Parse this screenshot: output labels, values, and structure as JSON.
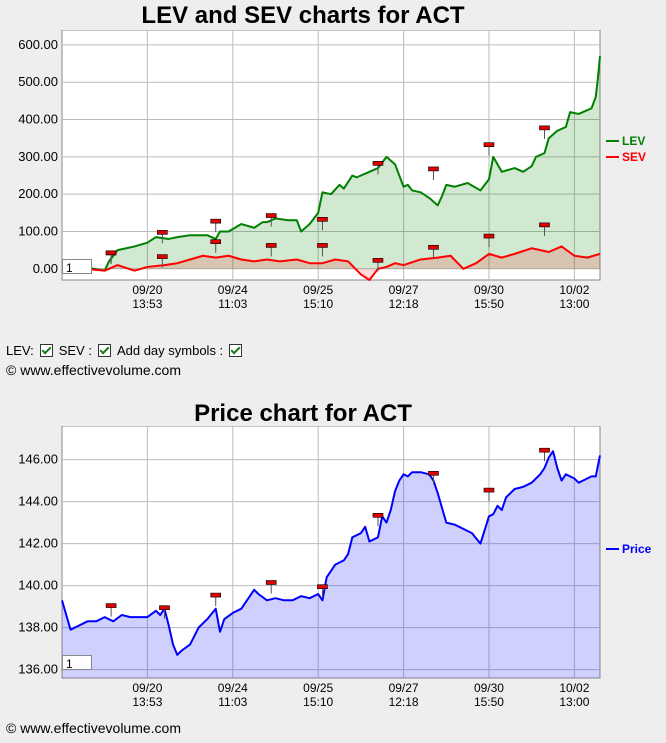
{
  "chart1": {
    "title": "LEV and SEV charts for ACT",
    "controls": {
      "lev": "LEV:",
      "sev": "SEV :",
      "daysym": "Add day symbols :"
    },
    "copyright": "© www.effectivevolume.com",
    "zoom_value": "1"
  },
  "chart2": {
    "title": "Price chart for ACT",
    "copyright": "© www.effectivevolume.com",
    "zoom_value": "1"
  },
  "chart_data": [
    {
      "type": "area",
      "title": "LEV and SEV charts for ACT",
      "ylim": [
        -30,
        640
      ],
      "yticks": [
        "0.00",
        "100.00",
        "200.00",
        "300.00",
        "400.00",
        "500.00",
        "600.00"
      ],
      "xticks": [
        {
          "d": "09/20",
          "t": "13:53",
          "x": 20
        },
        {
          "d": "09/24",
          "t": "11:03",
          "x": 40
        },
        {
          "d": "09/25",
          "t": "15:10",
          "x": 60
        },
        {
          "d": "09/27",
          "t": "12:18",
          "x": 80
        },
        {
          "d": "09/30",
          "t": "15:50",
          "x": 100
        },
        {
          "d": "10/02",
          "t": "13:00",
          "x": 120
        }
      ],
      "xlim": [
        0,
        126
      ],
      "series": [
        {
          "name": "LEV",
          "color": "#008000",
          "x": [
            0,
            5,
            10,
            11,
            13,
            17,
            20,
            22,
            25,
            27,
            30,
            34,
            36,
            37,
            39,
            42,
            45,
            47,
            48,
            50,
            53,
            55,
            56,
            58,
            60,
            61,
            63,
            65,
            66,
            68,
            69,
            72,
            74,
            76,
            77,
            78,
            80,
            81,
            82,
            84,
            86,
            88,
            89,
            90,
            92,
            95,
            98,
            100,
            101,
            103,
            106,
            108,
            110,
            111,
            113,
            114,
            116,
            118,
            119,
            121,
            122,
            124,
            125,
            125.5,
            126
          ],
          "y": [
            5,
            5,
            -5,
            20,
            50,
            60,
            70,
            85,
            80,
            85,
            90,
            90,
            80,
            100,
            100,
            120,
            110,
            125,
            125,
            135,
            130,
            130,
            100,
            120,
            150,
            205,
            200,
            225,
            215,
            250,
            245,
            260,
            270,
            300,
            290,
            280,
            220,
            225,
            210,
            205,
            190,
            170,
            195,
            225,
            220,
            230,
            210,
            240,
            300,
            260,
            270,
            260,
            275,
            300,
            310,
            350,
            370,
            380,
            420,
            415,
            420,
            430,
            460,
            510,
            570
          ]
        },
        {
          "name": "SEV",
          "color": "#ff0000",
          "x": [
            0,
            5,
            10,
            13,
            17,
            20,
            24,
            27,
            30,
            33,
            36,
            39,
            42,
            45,
            48,
            51,
            55,
            58,
            61,
            64,
            67,
            70,
            72,
            74,
            76,
            78,
            80,
            84,
            88,
            91,
            94,
            97,
            100,
            103,
            106,
            110,
            114,
            117,
            120,
            123,
            126
          ],
          "y": [
            0,
            0,
            -5,
            10,
            -5,
            5,
            10,
            15,
            25,
            35,
            30,
            35,
            25,
            20,
            25,
            20,
            25,
            15,
            15,
            25,
            20,
            -15,
            -30,
            0,
            5,
            15,
            10,
            25,
            30,
            35,
            0,
            15,
            40,
            30,
            40,
            55,
            45,
            60,
            35,
            30,
            40
          ]
        }
      ],
      "day_markers": [
        {
          "x": 11.5,
          "series": "SEV",
          "lev": 40,
          "sev": 40
        },
        {
          "x": 23.5,
          "lev": 95,
          "sev": 30
        },
        {
          "x": 36,
          "lev": 125,
          "sev": 70
        },
        {
          "x": 49,
          "lev": 140,
          "sev": 60
        },
        {
          "x": 61,
          "lev": 130,
          "sev": 60
        },
        {
          "x": 74,
          "lev": 280,
          "sev": 20
        },
        {
          "x": 87,
          "lev": 265,
          "sev": 55
        },
        {
          "x": 100,
          "lev": 330,
          "sev": 85
        },
        {
          "x": 113,
          "lev": 375,
          "sev": 115
        }
      ]
    },
    {
      "type": "area",
      "title": "Price chart for ACT",
      "ylim": [
        135.6,
        147.6
      ],
      "yticks": [
        "136.00",
        "138.00",
        "140.00",
        "142.00",
        "144.00",
        "146.00"
      ],
      "xticks": [
        {
          "d": "09/20",
          "t": "13:53",
          "x": 20
        },
        {
          "d": "09/24",
          "t": "11:03",
          "x": 40
        },
        {
          "d": "09/25",
          "t": "15:10",
          "x": 60
        },
        {
          "d": "09/27",
          "t": "12:18",
          "x": 80
        },
        {
          "d": "09/30",
          "t": "15:50",
          "x": 100
        },
        {
          "d": "10/02",
          "t": "13:00",
          "x": 120
        }
      ],
      "xlim": [
        0,
        126
      ],
      "series": [
        {
          "name": "Price",
          "color": "#0000ff",
          "x": [
            0,
            1,
            2,
            4,
            6,
            8,
            10,
            12,
            14,
            16,
            18,
            20,
            22,
            23,
            24,
            25,
            26,
            27,
            28,
            30,
            32,
            34,
            36,
            37,
            38,
            40,
            42,
            44,
            45,
            46,
            48,
            50,
            52,
            54,
            56,
            58,
            60,
            61,
            62,
            63,
            64,
            66,
            67,
            68,
            70,
            71,
            72,
            74,
            75,
            76,
            77,
            78,
            79,
            80,
            81,
            82,
            84,
            86,
            87,
            88,
            89,
            90,
            92,
            94,
            96,
            98,
            100,
            101,
            102,
            103,
            104,
            106,
            108,
            110,
            111,
            112,
            113,
            114,
            115,
            116,
            117,
            118,
            119,
            120,
            121,
            122,
            124,
            125,
            126
          ],
          "y": [
            139.3,
            138.6,
            137.9,
            138.1,
            138.3,
            138.3,
            138.5,
            138.3,
            138.6,
            138.5,
            138.5,
            138.5,
            138.8,
            138.6,
            138.9,
            138.1,
            137.2,
            136.7,
            136.9,
            137.2,
            138.0,
            138.4,
            138.9,
            137.8,
            138.4,
            138.7,
            138.9,
            139.5,
            139.8,
            139.6,
            139.3,
            139.4,
            139.3,
            139.3,
            139.5,
            139.4,
            139.6,
            139.3,
            140.4,
            140.7,
            141.0,
            141.2,
            141.5,
            142.3,
            142.5,
            142.8,
            142.1,
            142.3,
            143.3,
            143.0,
            143.6,
            144.5,
            145.0,
            145.3,
            145.2,
            145.4,
            145.4,
            145.3,
            145.0,
            144.4,
            143.7,
            143.0,
            142.9,
            142.7,
            142.5,
            142.0,
            143.3,
            143.4,
            143.8,
            143.6,
            144.2,
            144.6,
            144.7,
            144.9,
            145.1,
            145.3,
            145.6,
            146.1,
            146.4,
            145.6,
            145.0,
            145.3,
            145.2,
            145.1,
            144.9,
            145.0,
            145.2,
            145.2,
            146.2
          ]
        }
      ],
      "day_markers": [
        {
          "x": 11.5,
          "v": 139.0
        },
        {
          "x": 24,
          "v": 138.9
        },
        {
          "x": 36,
          "v": 139.5
        },
        {
          "x": 49,
          "v": 140.1
        },
        {
          "x": 61,
          "v": 139.9
        },
        {
          "x": 74,
          "v": 143.3
        },
        {
          "x": 87,
          "v": 145.3
        },
        {
          "x": 100,
          "v": 144.5
        },
        {
          "x": 113,
          "v": 146.4
        }
      ]
    }
  ]
}
